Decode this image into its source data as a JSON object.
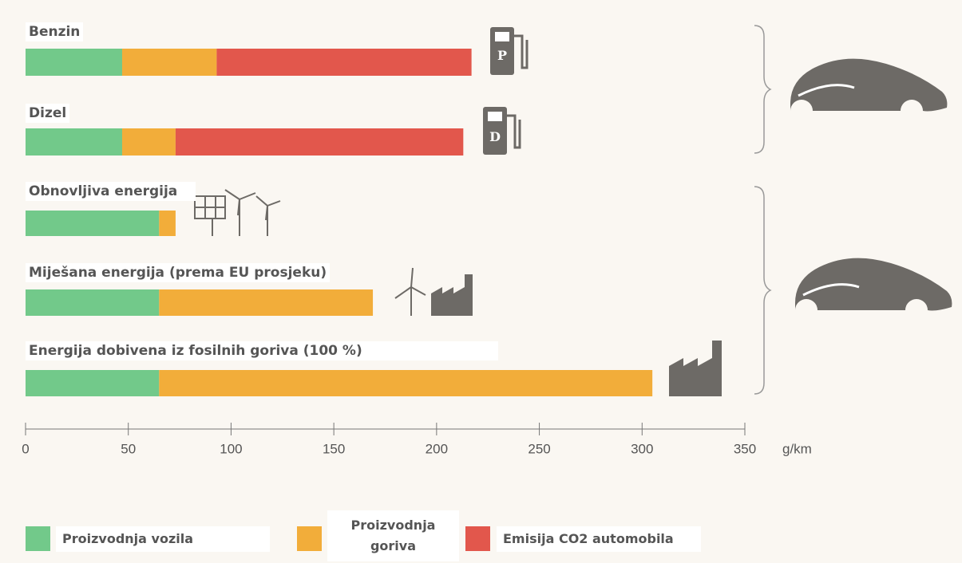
{
  "chart_data": {
    "type": "stacked-hbar",
    "categories": [
      "Benzin",
      "Dizel",
      "Obnovljiva energija",
      "Miješana energija (prema EU prosjeku)",
      "Energija dobivena iz fosilnih goriva (100 %)"
    ],
    "series": [
      {
        "name": "Proizvodnja vozila",
        "color": "#72c98a",
        "values": [
          47,
          47,
          65,
          65,
          65
        ]
      },
      {
        "name": "Proizvodnja goriva",
        "color": "#f2ad3a",
        "values": [
          46,
          26,
          8,
          104,
          240
        ]
      },
      {
        "name": "Emisija CO2 automobila",
        "color": "#e2574c",
        "values": [
          124,
          140,
          0,
          0,
          0
        ]
      }
    ],
    "x_label": "g/km",
    "xlim": [
      0,
      350
    ],
    "xticks": [
      0,
      50,
      100,
      150,
      200,
      250,
      300,
      350
    ]
  }
}
